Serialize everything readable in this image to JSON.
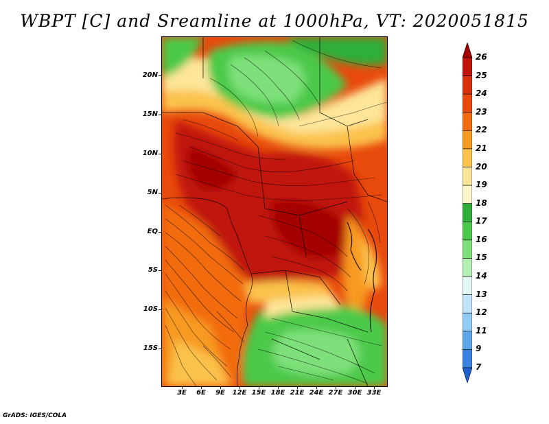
{
  "title": "WBPT [C] and Sreamline at 1000hPa, VT: 2020051815",
  "footer": "GrADS: IGES/COLA",
  "lat_labels": [
    "20N",
    "15N",
    "10N",
    "5N",
    "EQ",
    "5S",
    "10S",
    "15S"
  ],
  "lon_labels": [
    "3E",
    "6E",
    "9E",
    "12E",
    "15E",
    "18E",
    "21E",
    "24E",
    "27E",
    "30E",
    "33E"
  ],
  "colorbar": {
    "labels": [
      "26",
      "25",
      "24",
      "23",
      "22",
      "21",
      "20",
      "19",
      "18",
      "17",
      "16",
      "15",
      "14",
      "13",
      "12",
      "11",
      "9",
      "7"
    ],
    "colors": [
      "#a50000",
      "#c0140a",
      "#d8300c",
      "#e84a0c",
      "#f26c10",
      "#f79a22",
      "#fbc24c",
      "#fde59a",
      "#fdf6c8",
      "#2fae3a",
      "#4cc94a",
      "#7ee07a",
      "#b4f0b0",
      "#e2f8f6",
      "#bfe4fa",
      "#90ccf4",
      "#5ea8ea",
      "#3a82e0",
      "#1f5fd2"
    ]
  },
  "map": {
    "regions": [
      {
        "name": "sahel-green",
        "color": "#4cc94a"
      },
      {
        "name": "southern-green",
        "color": "#4cc94a"
      },
      {
        "name": "warm-core",
        "color": "#c0140a"
      }
    ]
  }
}
